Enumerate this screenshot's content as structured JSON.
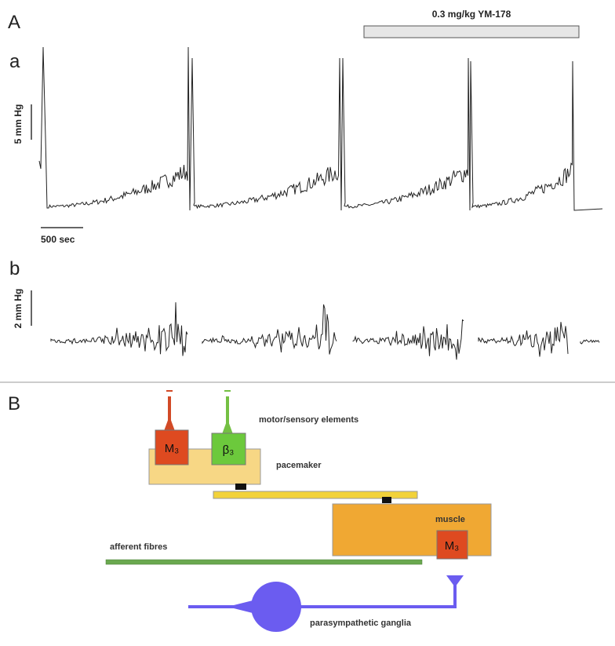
{
  "panel_a": {
    "label": "A",
    "treatment": "0.3 mg/kg YM-178",
    "trace_a": {
      "label": "a",
      "y_scale": "5 mm Hg",
      "x_scale": "500 sec"
    },
    "trace_b": {
      "label": "b",
      "y_scale": "2 mm Hg"
    }
  },
  "panel_b": {
    "label": "B",
    "motor_sensory": "motor/sensory elements",
    "m3_top": "M₃",
    "beta3": "β₃",
    "pacemaker": "pacemaker",
    "muscle": "muscle",
    "m3_muscle": "M₃",
    "afferent": "afferent fibres",
    "ganglia": "parasympathetic ganglia"
  }
}
